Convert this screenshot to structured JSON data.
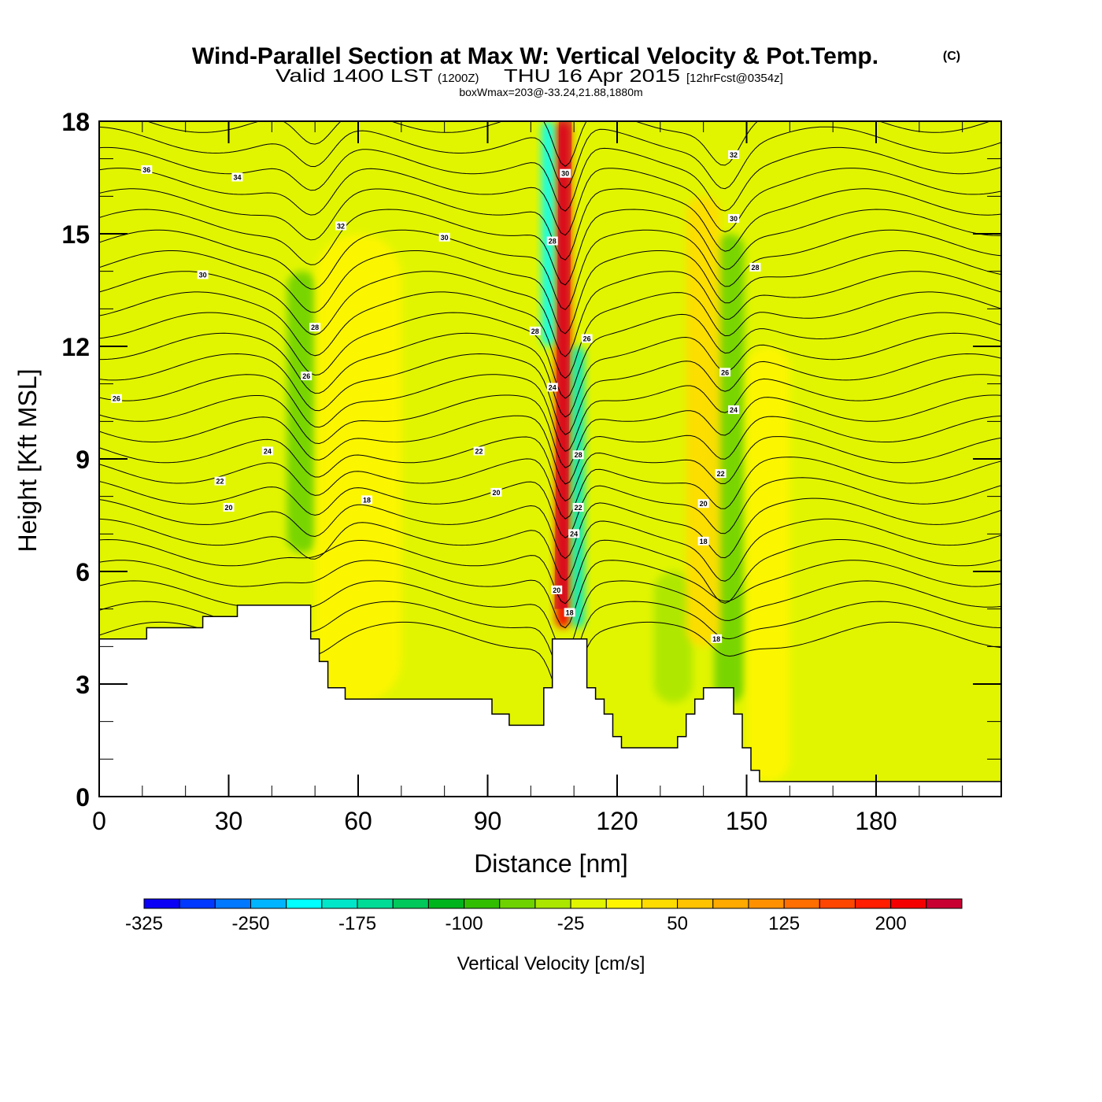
{
  "chart_data": {
    "type": "heatmap",
    "title": "Wind-Parallel Section at Max W: Vertical Velocity & Pot.Temp.",
    "title_mark": "(C)",
    "subtitle": {
      "valid_prefix": "Valid 1400 LST",
      "utc": "(1200Z)",
      "date": "THU 16 Apr 2015",
      "forecast": "[12hrFcst@0354z]"
    },
    "meta": "boxWmax=203@-33.24,21.88,1880m",
    "xlabel": "Distance [nm]",
    "ylabel": "Height [Kft MSL]",
    "xlim": [
      0,
      209
    ],
    "ylim": [
      0,
      18
    ],
    "xticks": [
      0,
      30,
      60,
      90,
      120,
      150,
      180
    ],
    "xtick_labels": [
      "0",
      "30",
      "60",
      "90",
      "120",
      "150",
      "180"
    ],
    "yticks": [
      0,
      3,
      6,
      9,
      12,
      15,
      18
    ],
    "ytick_labels": [
      "0",
      "3",
      "6",
      "9",
      "12",
      "15",
      "18"
    ],
    "colorbar": {
      "label": "Vertical Velocity [cm/s]",
      "levels_min": -325,
      "levels_step": 25,
      "colors": [
        "#0a00f5",
        "#0038ff",
        "#0078ff",
        "#00b4ff",
        "#00ffff",
        "#00e6c8",
        "#00dc96",
        "#00c85a",
        "#00b41e",
        "#32be00",
        "#6ed200",
        "#aae600",
        "#e1f500",
        "#fff500",
        "#ffdc00",
        "#ffc300",
        "#ffaa00",
        "#ff9100",
        "#ff6e00",
        "#ff4600",
        "#ff1e00",
        "#f50000",
        "#c80032"
      ],
      "tick_values": [
        -325,
        -250,
        -175,
        -100,
        -25,
        50,
        125,
        200
      ],
      "tick_labels": [
        "-325",
        "-250",
        "-175",
        "-100",
        "-25",
        "50",
        "125",
        "200"
      ]
    },
    "background_w": "#e1f500",
    "velocity_features": [
      {
        "kind": "updraft",
        "x_center": 107.5,
        "x_width": 3.5,
        "y_bottom": 4.5,
        "y_top": 18,
        "w_max": 203,
        "color": "#f50000"
      },
      {
        "kind": "downdraft",
        "x_center": 104,
        "x_width": 3,
        "y_bottom": 12,
        "y_top": 18,
        "w_min": -175,
        "color": "#00ffff"
      },
      {
        "kind": "downdraft",
        "x_center": 111,
        "x_width": 3,
        "y_bottom": 4.5,
        "y_top": 12,
        "w_min": -175,
        "color": "#00e6c8"
      },
      {
        "kind": "weak-down",
        "x_center": 47,
        "x_width": 7,
        "y_bottom": 6.5,
        "y_top": 14,
        "w_min": -75,
        "color": "#6ed200"
      },
      {
        "kind": "weak-down",
        "x_center": 146,
        "x_width": 7,
        "y_bottom": 2.5,
        "y_top": 15,
        "w_min": -75,
        "color": "#6ed200"
      },
      {
        "kind": "weak-down",
        "x_center": 133,
        "x_width": 9,
        "y_bottom": 2.5,
        "y_top": 6,
        "w_min": -50,
        "color": "#aae600"
      },
      {
        "kind": "weak-up",
        "x_center": 140,
        "x_width": 8,
        "y_bottom": 4,
        "y_top": 16,
        "w_max": 50,
        "color": "#ffdc00"
      },
      {
        "kind": "weak-up",
        "x_center": 60,
        "x_width": 20,
        "y_bottom": 2.5,
        "y_top": 15,
        "w_max": 25,
        "color": "#fff500"
      },
      {
        "kind": "weak-up",
        "x_center": 155,
        "x_width": 10,
        "y_bottom": 0.4,
        "y_top": 12,
        "w_max": 25,
        "color": "#fff500"
      }
    ],
    "theta_contours": {
      "unit": "C",
      "levels": [
        18,
        20,
        22,
        24,
        26,
        28,
        30,
        32,
        34,
        36
      ],
      "labels": [
        {
          "text": "36",
          "x": 11,
          "y": 16.7
        },
        {
          "text": "34",
          "x": 32,
          "y": 16.5
        },
        {
          "text": "32",
          "x": 56,
          "y": 15.2
        },
        {
          "text": "30",
          "x": 24,
          "y": 13.9
        },
        {
          "text": "30",
          "x": 80,
          "y": 14.9
        },
        {
          "text": "28",
          "x": 50,
          "y": 12.5
        },
        {
          "text": "26",
          "x": 4,
          "y": 10.6
        },
        {
          "text": "26",
          "x": 48,
          "y": 11.2
        },
        {
          "text": "24",
          "x": 39,
          "y": 9.2
        },
        {
          "text": "22",
          "x": 28,
          "y": 8.4
        },
        {
          "text": "20",
          "x": 30,
          "y": 7.7
        },
        {
          "text": "18",
          "x": 62,
          "y": 7.9
        },
        {
          "text": "22",
          "x": 88,
          "y": 9.2
        },
        {
          "text": "20",
          "x": 92,
          "y": 8.1
        },
        {
          "text": "28",
          "x": 101,
          "y": 12.4
        },
        {
          "text": "28",
          "x": 105,
          "y": 14.8
        },
        {
          "text": "30",
          "x": 108,
          "y": 16.6
        },
        {
          "text": "24",
          "x": 105,
          "y": 10.9
        },
        {
          "text": "26",
          "x": 113,
          "y": 12.2
        },
        {
          "text": "28",
          "x": 111,
          "y": 9.1
        },
        {
          "text": "22",
          "x": 111,
          "y": 7.7
        },
        {
          "text": "24",
          "x": 110,
          "y": 7.0
        },
        {
          "text": "20",
          "x": 106,
          "y": 5.5
        },
        {
          "text": "18",
          "x": 109,
          "y": 4.9
        },
        {
          "text": "32",
          "x": 147,
          "y": 17.1
        },
        {
          "text": "30",
          "x": 147,
          "y": 15.4
        },
        {
          "text": "28",
          "x": 152,
          "y": 14.1
        },
        {
          "text": "26",
          "x": 145,
          "y": 11.3
        },
        {
          "text": "24",
          "x": 147,
          "y": 10.3
        },
        {
          "text": "22",
          "x": 144,
          "y": 8.6
        },
        {
          "text": "20",
          "x": 140,
          "y": 7.8
        },
        {
          "text": "18",
          "x": 140,
          "y": 6.8
        },
        {
          "text": "18",
          "x": 143,
          "y": 4.2
        }
      ]
    },
    "terrain_kft": {
      "x": [
        0,
        11,
        11,
        24,
        24,
        32,
        32,
        49,
        49,
        51,
        51,
        53,
        53,
        57,
        57,
        91,
        91,
        95,
        95,
        103,
        103,
        105,
        105,
        108,
        108,
        113,
        113,
        115,
        115,
        117,
        117,
        119,
        119,
        121,
        121,
        124,
        124,
        126,
        126,
        134,
        134,
        136,
        136,
        138,
        138,
        140,
        140,
        142,
        142,
        147,
        147,
        149,
        149,
        151,
        151,
        153,
        153,
        156,
        156,
        209
      ],
      "y": [
        4.2,
        4.2,
        4.5,
        4.5,
        4.8,
        4.8,
        5.1,
        5.1,
        4.2,
        4.2,
        3.6,
        3.6,
        2.9,
        2.9,
        2.6,
        2.6,
        2.2,
        2.2,
        1.9,
        1.9,
        2.9,
        2.9,
        4.2,
        4.2,
        4.2,
        4.2,
        2.9,
        2.9,
        2.6,
        2.6,
        2.2,
        2.2,
        1.6,
        1.6,
        1.3,
        1.3,
        1.3,
        1.3,
        1.3,
        1.3,
        1.6,
        1.6,
        2.2,
        2.2,
        2.6,
        2.6,
        2.9,
        2.9,
        2.9,
        2.9,
        2.2,
        2.2,
        1.3,
        1.3,
        0.7,
        0.7,
        0.4,
        0.4,
        0.4,
        0.4
      ]
    }
  }
}
